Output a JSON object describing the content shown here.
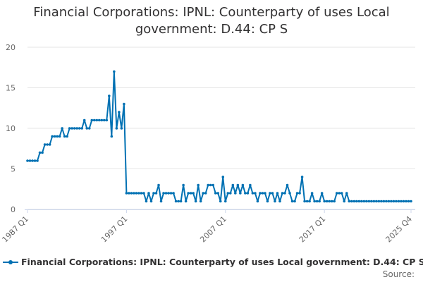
{
  "title_line1": "Financial Corporations: IPNL: Counterparty of uses Local",
  "title_line2": "government: D.44: CP S",
  "source_label": "Source:",
  "colors": {
    "series": "#0071b3",
    "grid": "#e6e6e6",
    "axis": "#ccd6eb",
    "text": "#666666"
  },
  "chart_data": {
    "type": "line",
    "title": "Financial Corporations: IPNL: Counterparty of uses Local government: D.44: CP S",
    "xlabel": "",
    "ylabel": "",
    "ylim": [
      0,
      20
    ],
    "yticks": [
      0,
      5,
      10,
      15,
      20
    ],
    "grid": true,
    "legend_position": "bottom-left",
    "x_tick_labels": [
      {
        "label": "1987 Q1",
        "index": 0
      },
      {
        "label": "1997 Q1",
        "index": 40
      },
      {
        "label": "2007 Q1",
        "index": 80
      },
      {
        "label": "2017 Q1",
        "index": 120
      },
      {
        "label": "2025 Q4",
        "index": 155
      }
    ],
    "series": [
      {
        "name": "Financial Corporations: IPNL: Counterparty of uses Local government: D.44: CP S",
        "x_start": "1987 Q1",
        "x_end": "2025 Q4",
        "frequency": "quarterly",
        "values": [
          6,
          6,
          6,
          6,
          6,
          7,
          7,
          8,
          8,
          8,
          9,
          9,
          9,
          9,
          10,
          9,
          9,
          10,
          10,
          10,
          10,
          10,
          10,
          11,
          10,
          10,
          11,
          11,
          11,
          11,
          11,
          11,
          11,
          14,
          9,
          17,
          10,
          12,
          10,
          13,
          2,
          2,
          2,
          2,
          2,
          2,
          2,
          2,
          1,
          2,
          1,
          2,
          2,
          3,
          1,
          2,
          2,
          2,
          2,
          2,
          1,
          1,
          1,
          3,
          1,
          2,
          2,
          2,
          1,
          3,
          1,
          2,
          2,
          3,
          3,
          3,
          2,
          2,
          1,
          4,
          1,
          2,
          2,
          3,
          2,
          3,
          2,
          3,
          2,
          2,
          3,
          2,
          2,
          1,
          2,
          2,
          2,
          1,
          2,
          2,
          1,
          2,
          1,
          2,
          2,
          3,
          2,
          1,
          1,
          2,
          2,
          4,
          1,
          1,
          1,
          2,
          1,
          1,
          1,
          2,
          1,
          1,
          1,
          1,
          1,
          2,
          2,
          2,
          1,
          2,
          1,
          1,
          1,
          1,
          1,
          1,
          1,
          1,
          1,
          1,
          1,
          1,
          1,
          1,
          1,
          1,
          1,
          1,
          1,
          1,
          1,
          1,
          1,
          1,
          1,
          1
        ]
      }
    ]
  }
}
